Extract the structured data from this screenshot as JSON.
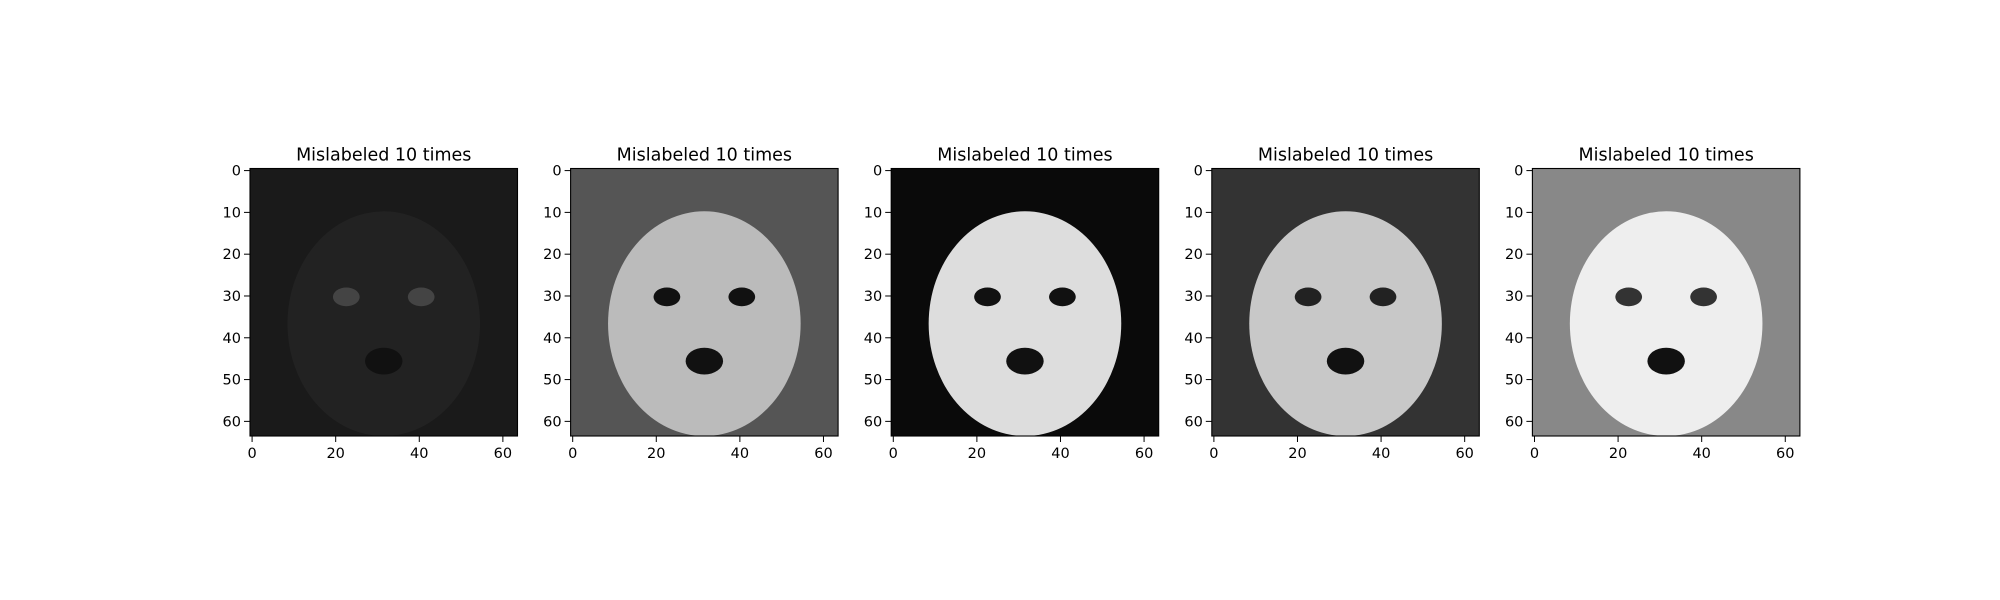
{
  "chart_data": [
    {
      "type": "image",
      "title": "Mislabeled 10 times",
      "xlim": [
        -0.5,
        63.5
      ],
      "ylim": [
        63.5,
        -0.5
      ],
      "xticks": [
        0,
        20,
        40,
        60
      ],
      "yticks": [
        0,
        10,
        20,
        30,
        40,
        50,
        60
      ]
    },
    {
      "type": "image",
      "title": "Mislabeled 10 times",
      "xlim": [
        -0.5,
        63.5
      ],
      "ylim": [
        63.5,
        -0.5
      ],
      "xticks": [
        0,
        20,
        40,
        60
      ],
      "yticks": [
        0,
        10,
        20,
        30,
        40,
        50,
        60
      ]
    },
    {
      "type": "image",
      "title": "Mislabeled 10 times",
      "xlim": [
        -0.5,
        63.5
      ],
      "ylim": [
        63.5,
        -0.5
      ],
      "xticks": [
        0,
        20,
        40,
        60
      ],
      "yticks": [
        0,
        10,
        20,
        30,
        40,
        50,
        60
      ]
    },
    {
      "type": "image",
      "title": "Mislabeled 10 times",
      "xlim": [
        -0.5,
        63.5
      ],
      "ylim": [
        63.5,
        -0.5
      ],
      "xticks": [
        0,
        20,
        40,
        60
      ],
      "yticks": [
        0,
        10,
        20,
        30,
        40,
        50,
        60
      ]
    },
    {
      "type": "image",
      "title": "Mislabeled 10 times",
      "xlim": [
        -0.5,
        63.5
      ],
      "ylim": [
        63.5,
        -0.5
      ],
      "xticks": [
        0,
        20,
        40,
        60
      ],
      "yticks": [
        0,
        10,
        20,
        30,
        40,
        50,
        60
      ]
    }
  ]
}
